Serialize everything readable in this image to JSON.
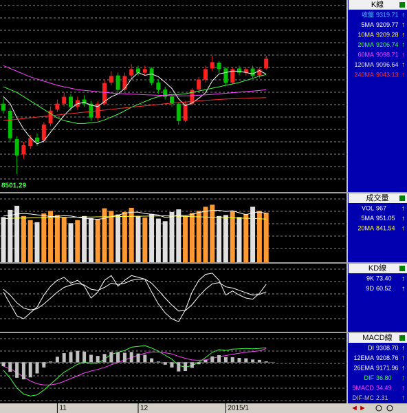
{
  "chart_data": [
    {
      "type": "candlestick",
      "title": "K線",
      "x": [
        null,
        null,
        null,
        null,
        null,
        null,
        null,
        null,
        "11",
        null,
        null,
        null,
        null,
        null,
        null,
        null,
        null,
        null,
        null,
        null,
        "12",
        null,
        null,
        null,
        null,
        null,
        null,
        null,
        null,
        null,
        null,
        null,
        null,
        "2015/1",
        null,
        null,
        null,
        null,
        null,
        null
      ],
      "open": [
        9000,
        8950,
        8750,
        8640,
        8700,
        8760,
        8740,
        8860,
        8960,
        9000,
        9050,
        8980,
        9030,
        9000,
        8900,
        9000,
        9150,
        9200,
        9100,
        9200,
        9250,
        9220,
        9250,
        9150,
        9100,
        9050,
        9000,
        8880,
        9000,
        9100,
        9170,
        9250,
        9290,
        9250,
        9150,
        9250,
        9220,
        9250,
        9200,
        9250
      ],
      "high": [
        9040,
        8970,
        8770,
        8730,
        8780,
        8790,
        8870,
        8980,
        9030,
        9080,
        9070,
        9050,
        9060,
        9020,
        9020,
        9170,
        9230,
        9220,
        9220,
        9280,
        9270,
        9270,
        9260,
        9170,
        9120,
        9070,
        9010,
        9020,
        9110,
        9190,
        9270,
        9340,
        9300,
        9260,
        9260,
        9270,
        9260,
        9270,
        9260,
        9340
      ],
      "low": [
        8930,
        8730,
        8501.29,
        8610,
        8680,
        8700,
        8720,
        8840,
        8940,
        8980,
        8950,
        8960,
        8980,
        8880,
        8880,
        8990,
        9130,
        9080,
        9090,
        9180,
        9200,
        9200,
        9130,
        9070,
        9030,
        8980,
        8850,
        8870,
        8990,
        9090,
        9150,
        9230,
        9220,
        9130,
        9140,
        9200,
        9200,
        9180,
        9180,
        9240
      ],
      "close": [
        8951,
        8755,
        8633,
        8706,
        8755,
        8730,
        8853,
        8951,
        9000,
        9049,
        8975,
        9025,
        9000,
        8902,
        9000,
        9147,
        9196,
        9098,
        9196,
        9245,
        9220,
        9245,
        9147,
        9098,
        9049,
        9000,
        8877,
        9000,
        9098,
        9172,
        9245,
        9294,
        9245,
        9147,
        9245,
        9220,
        9245,
        9196,
        9245,
        9319.71
      ],
      "ylim": [
        8374,
        9735
      ],
      "grid": true,
      "up_color": "#ff2020",
      "down_color": "#00c000",
      "annotation": "8501.29",
      "readouts": [
        {
          "label": "收盤",
          "value": 9319.71,
          "arrow": "↑",
          "color": "#40c8ff"
        },
        {
          "label": "5MA",
          "value": 9209.77,
          "arrow": "↑",
          "color": "#ffffff",
          "values": [
            9050,
            9000,
            8900,
            8820,
            8760,
            8716,
            8735,
            8799,
            8858,
            8917,
            8966,
            9000,
            9010,
            8990,
            8980,
            9015,
            9049,
            9069,
            9107,
            9176,
            9221,
            9201,
            9211,
            9191,
            9152,
            9108,
            9034,
            8985,
            9005,
            9039,
            9078,
            9162,
            9211,
            9221,
            9231,
            9230,
            9221,
            9211,
            9235,
            9209.77
          ]
        },
        {
          "label": "10MA",
          "value": 9209.28,
          "arrow": "↑",
          "color": "#ffff40"
        },
        {
          "label": "20MA",
          "value": 9206.74,
          "arrow": "↑",
          "color": "#40ff40",
          "values": [
            9120,
            9100,
            9080,
            9050,
            9020,
            8990,
            8960,
            8930,
            8900,
            8880,
            8870,
            8860,
            8860,
            8865,
            8870,
            8885,
            8905,
            8925,
            8950,
            8975,
            8995,
            9015,
            9035,
            9050,
            9060,
            9065,
            9065,
            9070,
            9080,
            9090,
            9100,
            9110,
            9120,
            9130,
            9140,
            9150,
            9165,
            9180,
            9195,
            9206.74
          ]
        },
        {
          "label": "60MA",
          "value": 9098.71,
          "arrow": "↑",
          "color": "#ff40ff",
          "values": [
            9270,
            9250,
            9230,
            9210,
            9190,
            9175,
            9160,
            9145,
            9130,
            9120,
            9110,
            9100,
            9095,
            9090,
            9085,
            9080,
            9076,
            9072,
            9070,
            9068,
            9066,
            9064,
            9062,
            9060,
            9058,
            9057,
            9056,
            9056,
            9057,
            9060,
            9063,
            9066,
            9070,
            9074,
            9078,
            9082,
            9086,
            9090,
            9094,
            9098.71
          ]
        },
        {
          "label": "120MA",
          "value": 9096.64,
          "arrow": "↑",
          "color": "#e0e0e0"
        },
        {
          "label": "240MA",
          "value": 9043.13,
          "arrow": "↑",
          "color": "#ff3030",
          "values": [
            8880,
            8885,
            8890,
            8895,
            8900,
            8905,
            8910,
            8915,
            8920,
            8925,
            8930,
            8935,
            8940,
            8945,
            8950,
            8955,
            8960,
            8965,
            8970,
            8975,
            8980,
            8985,
            8990,
            8995,
            9000,
            9004,
            9008,
            9012,
            9016,
            9020,
            9024,
            9027,
            9030,
            9033,
            9035,
            9037,
            9039,
            9041,
            9042,
            9043.13
          ]
        }
      ]
    },
    {
      "type": "volume",
      "title": "成交量",
      "values": [
        880,
        1020,
        1100,
        900,
        820,
        780,
        950,
        1000,
        920,
        880,
        760,
        820,
        900,
        860,
        840,
        1050,
        1000,
        930,
        980,
        1060,
        900,
        870,
        940,
        850,
        800,
        980,
        1030,
        890,
        960,
        1000,
        1080,
        1120,
        900,
        920,
        1000,
        880,
        940,
        1080,
        1000,
        967
      ],
      "ylim": [
        0,
        1300
      ],
      "grid": true,
      "up_color": "#ff9933",
      "down_color": "#e0e0e0",
      "readouts": [
        {
          "label": "VOL",
          "value": 967,
          "arrow": "↑",
          "color": "#ffffff"
        },
        {
          "label": "5MA",
          "value": 951.05,
          "arrow": "↑",
          "color": "#ffffff",
          "values": [
            900,
            910,
            940,
            950,
            940,
            924,
            910,
            890,
            894,
            906,
            902,
            876,
            856,
            844,
            836,
            854,
            890,
            916,
            954,
            974,
            974,
            948,
            934,
            920,
            872,
            888,
            920,
            910,
            932,
            972,
            988,
            1010,
            1012,
            988,
            1004,
            964,
            928,
            964,
            980,
            951.05
          ]
        },
        {
          "label": "20MA",
          "value": 841.54,
          "arrow": "↑",
          "color": "#ffff40",
          "values": [
            850,
            855,
            860,
            862,
            864,
            866,
            868,
            870,
            872,
            874,
            876,
            878,
            880,
            882,
            884,
            886,
            888,
            890,
            892,
            894,
            896,
            898,
            900,
            902,
            904,
            900,
            896,
            892,
            888,
            884,
            880,
            876,
            872,
            868,
            864,
            860,
            856,
            852,
            846,
            841.54
          ]
        }
      ]
    },
    {
      "type": "kd",
      "title": "KD線",
      "ylim": [
        0,
        100
      ],
      "grid": true,
      "readouts": [
        {
          "label": "9K",
          "value": 73.4,
          "value_label": "73.40",
          "arrow": "↑",
          "color": "#ffffff",
          "values": [
            60,
            40,
            20,
            15,
            25,
            35,
            55,
            70,
            80,
            85,
            75,
            80,
            70,
            50,
            60,
            80,
            88,
            70,
            80,
            88,
            85,
            82,
            60,
            40,
            25,
            15,
            10,
            30,
            60,
            80,
            90,
            92,
            80,
            55,
            62,
            55,
            50,
            48,
            58,
            73.4
          ]
        },
        {
          "label": "9D",
          "value": 60.52,
          "arrow": "↑",
          "color": "#ffffff",
          "values": [
            65,
            55,
            42,
            33,
            30,
            32,
            40,
            50,
            60,
            68,
            72,
            75,
            72,
            65,
            63,
            68,
            75,
            73,
            75,
            80,
            82,
            82,
            75,
            63,
            50,
            38,
            28,
            29,
            39,
            53,
            65,
            74,
            76,
            69,
            67,
            63,
            59,
            55,
            56,
            60.52
          ]
        }
      ]
    },
    {
      "type": "macd",
      "title": "MACD線",
      "ylim": [
        -100,
        70
      ],
      "grid": true,
      "readouts": [
        {
          "label": "DI",
          "value": 9308.7,
          "value_label": "9308.70",
          "arrow": "↑",
          "color": "#ffffff"
        },
        {
          "label": "12EMA",
          "value": 9208.76,
          "arrow": "↑",
          "color": "#ffffff"
        },
        {
          "label": "26EMA",
          "value": 9171.96,
          "arrow": "↑",
          "color": "#ffffff"
        },
        {
          "label": "DIF",
          "value": 36.8,
          "value_label": "36.80",
          "arrow": "↑",
          "color": "#40ff40",
          "values": [
            -20,
            -40,
            -65,
            -80,
            -85,
            -82,
            -70,
            -55,
            -40,
            -25,
            -15,
            -5,
            0,
            -3,
            -2,
            8,
            20,
            25,
            30,
            38,
            40,
            42,
            36,
            28,
            18,
            8,
            -8,
            -12,
            -8,
            0,
            12,
            25,
            32,
            30,
            33,
            34,
            35,
            34,
            35,
            36.8
          ]
        },
        {
          "label": "9MACD",
          "value": 34.49,
          "arrow": "↑",
          "color": "#ff40ff",
          "values": [
            -10,
            -16,
            -26,
            -37,
            -47,
            -54,
            -57,
            -57,
            -54,
            -48,
            -41,
            -34,
            -27,
            -22,
            -18,
            -13,
            -6,
            0,
            6,
            12,
            18,
            23,
            26,
            26,
            24,
            21,
            15,
            10,
            6,
            5,
            6,
            10,
            14,
            17,
            20,
            23,
            25,
            27,
            29,
            34.49
          ]
        },
        {
          "label": "DIF-MC",
          "value": 2.31,
          "arrow": "↑",
          "color": "#c0c0c0",
          "bars": true,
          "values": [
            -10,
            -24,
            -39,
            -43,
            -38,
            -28,
            -13,
            2,
            14,
            23,
            26,
            29,
            27,
            19,
            16,
            21,
            26,
            25,
            24,
            26,
            22,
            19,
            10,
            2,
            -6,
            -13,
            -23,
            -22,
            -14,
            -5,
            6,
            15,
            18,
            13,
            13,
            11,
            10,
            7,
            6,
            2.31
          ]
        }
      ]
    }
  ]
}
